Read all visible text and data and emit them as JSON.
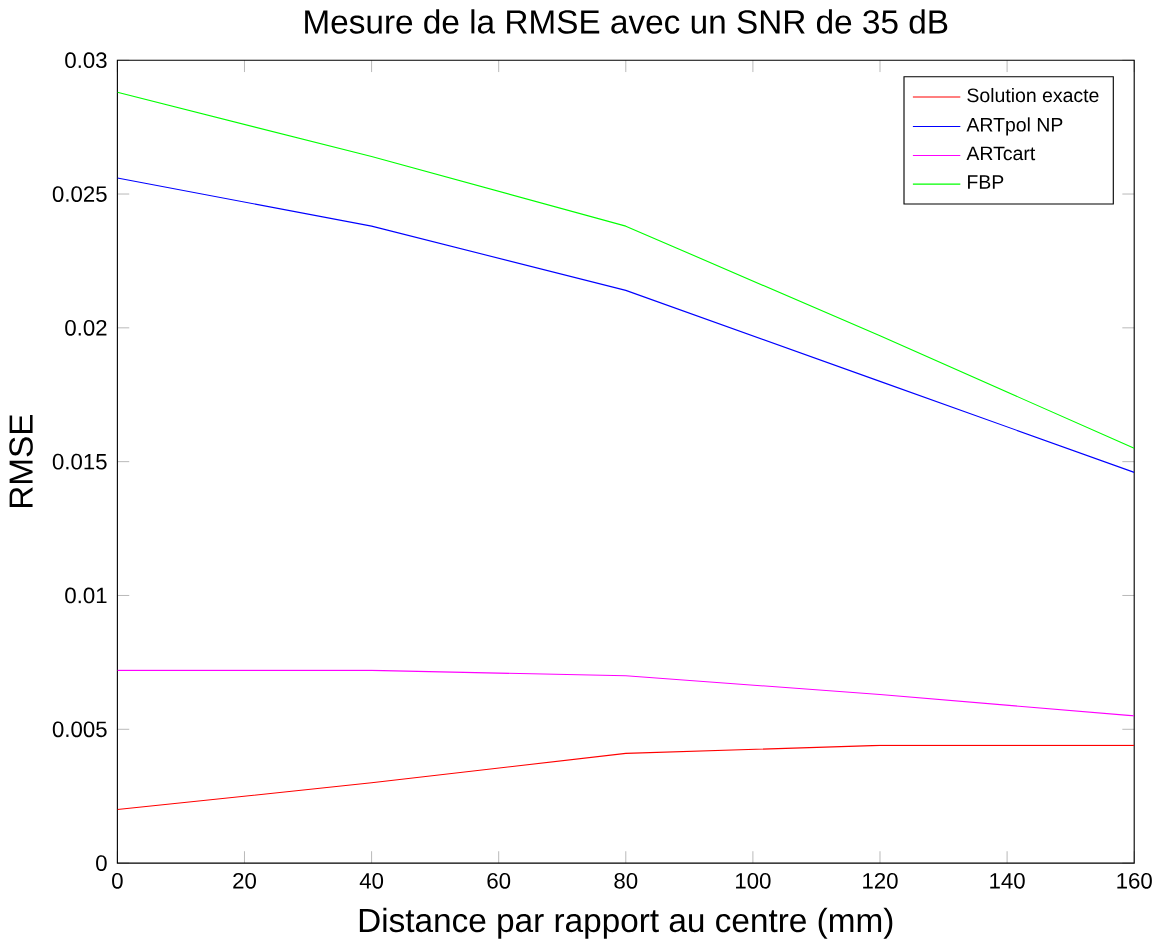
{
  "chart_data": {
    "type": "line",
    "title": "Mesure de la RMSE avec un SNR de 35 dB",
    "xlabel": "Distance par rapport au centre (mm)",
    "ylabel": "RMSE",
    "x": [
      0,
      40,
      80,
      120,
      160
    ],
    "series": [
      {
        "name": "Solution exacte",
        "color": "#ff0000",
        "values": [
          0.002,
          0.003,
          0.0041,
          0.0044,
          0.0044
        ]
      },
      {
        "name": "ARTpol NP",
        "color": "#0000ff",
        "values": [
          0.0256,
          0.0238,
          0.0214,
          0.018,
          0.0146
        ]
      },
      {
        "name": "ARTcart",
        "color": "#ff00ff",
        "values": [
          0.0072,
          0.0072,
          0.007,
          0.0063,
          0.0055
        ]
      },
      {
        "name": "FBP",
        "color": "#00ff00",
        "values": [
          0.0288,
          0.0264,
          0.0238,
          0.0197,
          0.0155
        ]
      }
    ],
    "xlim": [
      0,
      160
    ],
    "ylim": [
      0,
      0.03
    ],
    "xticks": [
      0,
      20,
      40,
      60,
      80,
      100,
      120,
      140,
      160
    ],
    "yticks": [
      0,
      0.005,
      0.01,
      0.015,
      0.02,
      0.025,
      0.03
    ],
    "grid": false,
    "legend": "top right",
    "marker": "none",
    "line_style": "solid"
  }
}
